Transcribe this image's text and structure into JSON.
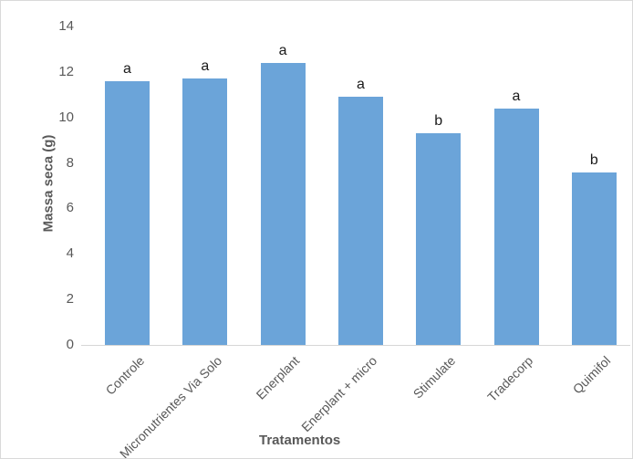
{
  "chart_data": {
    "type": "bar",
    "title": "",
    "xlabel": "Tratamentos",
    "ylabel": "Massa seca (g)",
    "categories": [
      "Controle",
      "Micronutrientes Via Solo",
      "Enerplant",
      "Enerplant + micro",
      "Stimulate",
      "Tradecorp",
      "Quimifol"
    ],
    "values": [
      11.6,
      11.7,
      12.4,
      10.9,
      9.3,
      10.4,
      7.6
    ],
    "bar_labels": [
      "a",
      "a",
      "a",
      "a",
      "b",
      "a",
      "b"
    ],
    "yticks": [
      0,
      2,
      4,
      6,
      8,
      10,
      12,
      14
    ],
    "ylim": [
      0,
      14
    ],
    "grid": false,
    "legend": "none",
    "colors": {
      "bar": "#6ba4d9",
      "axis_line": "#d6d6d6",
      "tick_text": "#595959",
      "category_text": "#595959",
      "axis_title_text": "#595959",
      "bar_label_text": "#1a1a1a",
      "frame_border": "#d9d9d9",
      "background": "#ffffff"
    }
  }
}
